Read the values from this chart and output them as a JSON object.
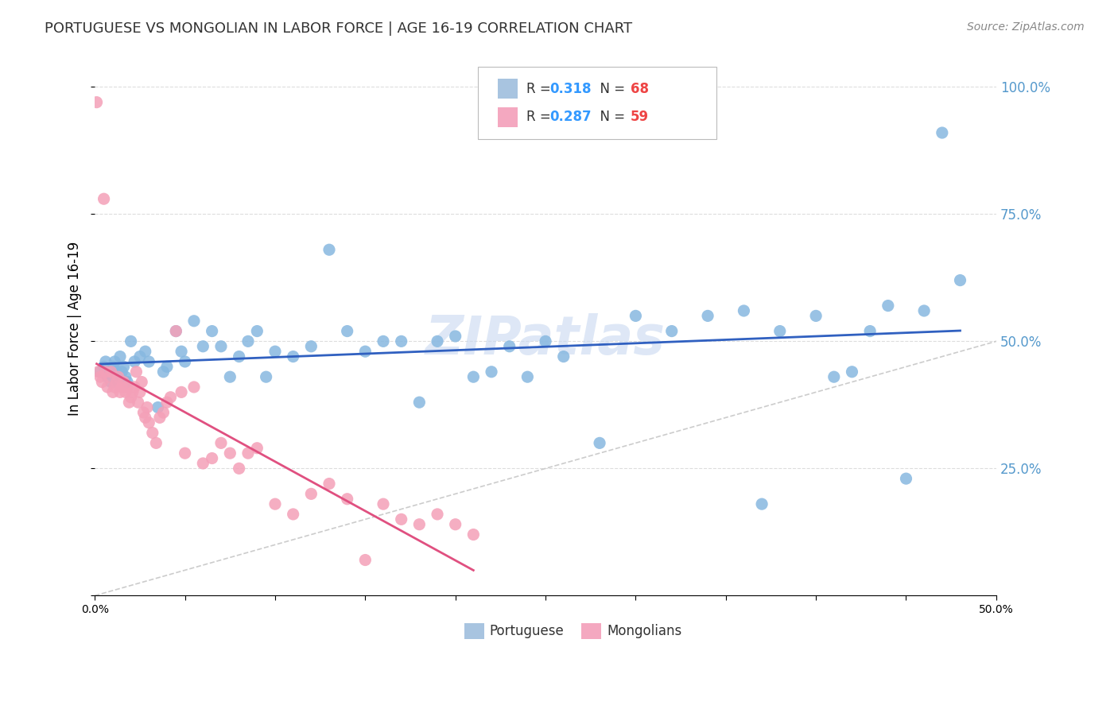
{
  "title": "PORTUGUESE VS MONGOLIAN IN LABOR FORCE | AGE 16-19 CORRELATION CHART",
  "source": "Source: ZipAtlas.com",
  "ylabel": "In Labor Force | Age 16-19",
  "xlim": [
    0.0,
    0.5
  ],
  "ylim": [
    0.0,
    1.05
  ],
  "xticks": [
    0.0,
    0.05,
    0.1,
    0.15,
    0.2,
    0.25,
    0.3,
    0.35,
    0.4,
    0.45,
    0.5
  ],
  "ytick_positions": [
    0.0,
    0.25,
    0.5,
    0.75,
    1.0
  ],
  "ytick_labels": [
    "",
    "25.0%",
    "50.0%",
    "75.0%",
    "100.0%"
  ],
  "legend_box_color_blue": "#a8c4e0",
  "legend_box_color_pink": "#f4a8c0",
  "blue_color": "#87b8e0",
  "pink_color": "#f4a0b8",
  "blue_line_color": "#3060c0",
  "pink_line_color": "#e05080",
  "diagonal_color": "#cccccc",
  "grid_color": "#dddddd",
  "background_color": "#ffffff",
  "watermark": "ZIPatlas",
  "r_blue": "0.318",
  "n_blue": "68",
  "r_pink": "0.287",
  "n_pink": "59",
  "portuguese_x": [
    0.003,
    0.005,
    0.006,
    0.007,
    0.008,
    0.009,
    0.01,
    0.011,
    0.012,
    0.013,
    0.014,
    0.015,
    0.016,
    0.017,
    0.018,
    0.02,
    0.022,
    0.025,
    0.028,
    0.03,
    0.035,
    0.038,
    0.04,
    0.045,
    0.048,
    0.05,
    0.055,
    0.06,
    0.065,
    0.07,
    0.075,
    0.08,
    0.085,
    0.09,
    0.095,
    0.1,
    0.11,
    0.12,
    0.13,
    0.14,
    0.15,
    0.16,
    0.17,
    0.18,
    0.19,
    0.2,
    0.21,
    0.22,
    0.23,
    0.24,
    0.25,
    0.26,
    0.28,
    0.3,
    0.32,
    0.34,
    0.36,
    0.37,
    0.38,
    0.4,
    0.41,
    0.42,
    0.43,
    0.44,
    0.45,
    0.46,
    0.47,
    0.48
  ],
  "portuguese_y": [
    0.44,
    0.45,
    0.46,
    0.43,
    0.44,
    0.42,
    0.45,
    0.46,
    0.44,
    0.43,
    0.47,
    0.44,
    0.45,
    0.43,
    0.42,
    0.5,
    0.46,
    0.47,
    0.48,
    0.46,
    0.37,
    0.44,
    0.45,
    0.52,
    0.48,
    0.46,
    0.54,
    0.49,
    0.52,
    0.49,
    0.43,
    0.47,
    0.5,
    0.52,
    0.43,
    0.48,
    0.47,
    0.49,
    0.68,
    0.52,
    0.48,
    0.5,
    0.5,
    0.38,
    0.5,
    0.51,
    0.43,
    0.44,
    0.49,
    0.43,
    0.5,
    0.47,
    0.3,
    0.55,
    0.52,
    0.55,
    0.56,
    0.18,
    0.52,
    0.55,
    0.43,
    0.44,
    0.52,
    0.57,
    0.23,
    0.56,
    0.91,
    0.62
  ],
  "mongolian_x": [
    0.001,
    0.002,
    0.003,
    0.004,
    0.005,
    0.006,
    0.007,
    0.008,
    0.009,
    0.01,
    0.011,
    0.012,
    0.013,
    0.014,
    0.015,
    0.016,
    0.017,
    0.018,
    0.019,
    0.02,
    0.021,
    0.022,
    0.023,
    0.024,
    0.025,
    0.026,
    0.027,
    0.028,
    0.029,
    0.03,
    0.032,
    0.034,
    0.036,
    0.038,
    0.04,
    0.042,
    0.045,
    0.048,
    0.05,
    0.055,
    0.06,
    0.065,
    0.07,
    0.075,
    0.08,
    0.085,
    0.09,
    0.1,
    0.11,
    0.12,
    0.13,
    0.14,
    0.15,
    0.16,
    0.17,
    0.18,
    0.19,
    0.2,
    0.21
  ],
  "mongolian_y": [
    0.97,
    0.44,
    0.43,
    0.42,
    0.78,
    0.44,
    0.41,
    0.43,
    0.44,
    0.4,
    0.41,
    0.42,
    0.43,
    0.4,
    0.41,
    0.42,
    0.4,
    0.41,
    0.38,
    0.39,
    0.4,
    0.41,
    0.44,
    0.38,
    0.4,
    0.42,
    0.36,
    0.35,
    0.37,
    0.34,
    0.32,
    0.3,
    0.35,
    0.36,
    0.38,
    0.39,
    0.52,
    0.4,
    0.28,
    0.41,
    0.26,
    0.27,
    0.3,
    0.28,
    0.25,
    0.28,
    0.29,
    0.18,
    0.16,
    0.2,
    0.22,
    0.19,
    0.07,
    0.18,
    0.15,
    0.14,
    0.16,
    0.14,
    0.12
  ]
}
